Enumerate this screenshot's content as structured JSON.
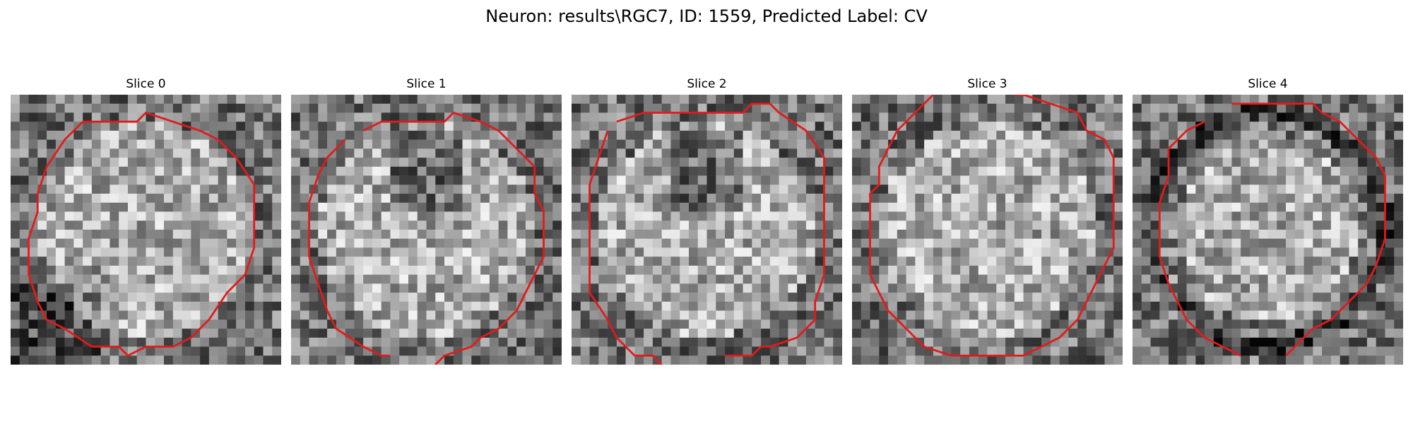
{
  "figure": {
    "title": "Neuron: results\\RGC7, ID: 1559, Predicted Label: CV"
  },
  "colors": {
    "contour": "#e31a1c",
    "colormap": "gray"
  },
  "panels": [
    {
      "title": "Slice 0",
      "seed": 11,
      "dark_zone": "bottom-left"
    },
    {
      "title": "Slice 1",
      "seed": 23,
      "dark_zone": "top-center"
    },
    {
      "title": "Slice 2",
      "seed": 37,
      "dark_zone": "top-center"
    },
    {
      "title": "Slice 3",
      "seed": 51,
      "dark_zone": "none"
    },
    {
      "title": "Slice 4",
      "seed": 67,
      "dark_zone": "ring"
    }
  ]
}
